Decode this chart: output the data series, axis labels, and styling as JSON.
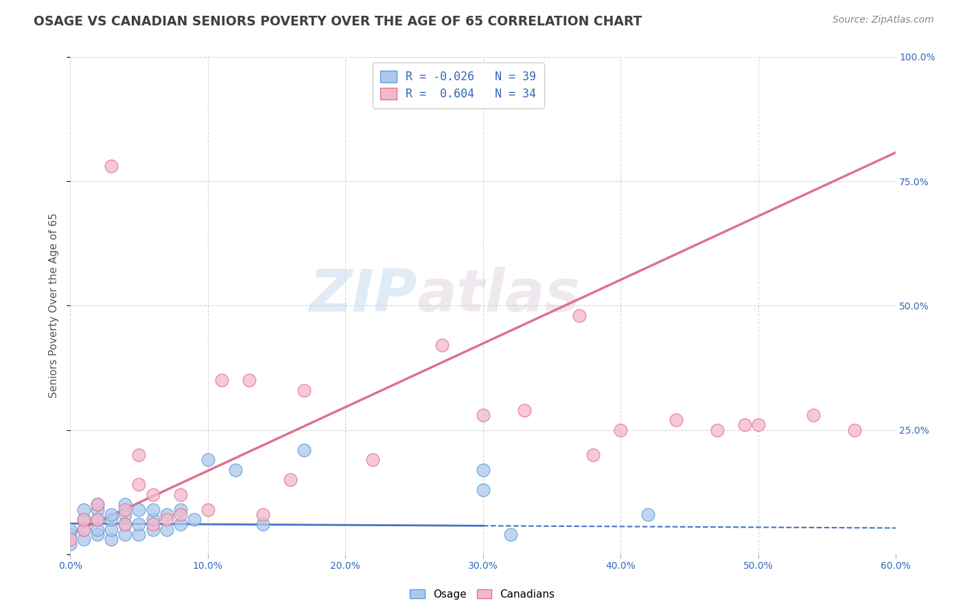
{
  "title": "OSAGE VS CANADIAN SENIORS POVERTY OVER THE AGE OF 65 CORRELATION CHART",
  "source_text": "Source: ZipAtlas.com",
  "ylabel": "Seniors Poverty Over the Age of 65",
  "xlim": [
    0.0,
    0.6
  ],
  "ylim": [
    0.0,
    1.0
  ],
  "xtick_vals": [
    0.0,
    0.1,
    0.2,
    0.3,
    0.4,
    0.5,
    0.6
  ],
  "xtick_labels": [
    "0.0%",
    "10.0%",
    "20.0%",
    "30.0%",
    "40.0%",
    "50.0%",
    "60.0%"
  ],
  "ytick_vals": [
    0.0,
    0.25,
    0.5,
    0.75,
    1.0
  ],
  "ytick_labels": [
    "",
    "25.0%",
    "50.0%",
    "75.0%",
    "100.0%"
  ],
  "watermark_text": "ZIP",
  "watermark_text2": "atlas",
  "legend_line1": "R = -0.026   N = 39",
  "legend_line2": "R =  0.604   N = 34",
  "osage_color": "#adc8ed",
  "osage_edge_color": "#5b9bd5",
  "canadian_color": "#f4b8cb",
  "canadian_edge_color": "#e07090",
  "osage_trendline_color": "#4472c4",
  "canadian_trendline_color": "#e07090",
  "background_color": "#ffffff",
  "grid_color": "#c8c8c8",
  "title_color": "#404040",
  "source_color": "#888888",
  "axis_label_color": "#555555",
  "tick_color": "#3366bb",
  "legend_text_color": "#3366bb",
  "osage_legend_fill": "#adc8ed",
  "osage_legend_edge": "#5b9bd5",
  "canadian_legend_fill": "#f4b8cb",
  "canadian_legend_edge": "#e07090",
  "osage_x": [
    0.0,
    0.0,
    0.0,
    0.01,
    0.01,
    0.01,
    0.01,
    0.02,
    0.02,
    0.02,
    0.02,
    0.02,
    0.03,
    0.03,
    0.03,
    0.03,
    0.04,
    0.04,
    0.04,
    0.04,
    0.05,
    0.05,
    0.05,
    0.06,
    0.06,
    0.06,
    0.07,
    0.07,
    0.08,
    0.08,
    0.09,
    0.1,
    0.12,
    0.14,
    0.17,
    0.3,
    0.3,
    0.32,
    0.42
  ],
  "osage_y": [
    0.02,
    0.04,
    0.05,
    0.03,
    0.05,
    0.07,
    0.09,
    0.04,
    0.05,
    0.07,
    0.09,
    0.1,
    0.03,
    0.05,
    0.07,
    0.08,
    0.04,
    0.06,
    0.08,
    0.1,
    0.04,
    0.06,
    0.09,
    0.05,
    0.07,
    0.09,
    0.05,
    0.08,
    0.06,
    0.09,
    0.07,
    0.19,
    0.17,
    0.06,
    0.21,
    0.13,
    0.17,
    0.04,
    0.08
  ],
  "canadian_x": [
    0.0,
    0.01,
    0.01,
    0.02,
    0.02,
    0.03,
    0.04,
    0.04,
    0.05,
    0.05,
    0.06,
    0.06,
    0.07,
    0.08,
    0.08,
    0.1,
    0.11,
    0.13,
    0.14,
    0.16,
    0.17,
    0.22,
    0.27,
    0.3,
    0.33,
    0.37,
    0.38,
    0.4,
    0.44,
    0.47,
    0.49,
    0.5,
    0.54,
    0.57
  ],
  "canadian_y": [
    0.03,
    0.05,
    0.07,
    0.07,
    0.1,
    0.78,
    0.06,
    0.09,
    0.14,
    0.2,
    0.06,
    0.12,
    0.07,
    0.08,
    0.12,
    0.09,
    0.35,
    0.35,
    0.08,
    0.15,
    0.33,
    0.19,
    0.42,
    0.28,
    0.29,
    0.48,
    0.2,
    0.25,
    0.27,
    0.25,
    0.26,
    0.26,
    0.28,
    0.25
  ],
  "osage_trendline_slope": -0.015,
  "osage_trendline_intercept": 0.062,
  "canadian_trendline_slope": 1.28,
  "canadian_trendline_intercept": 0.04
}
